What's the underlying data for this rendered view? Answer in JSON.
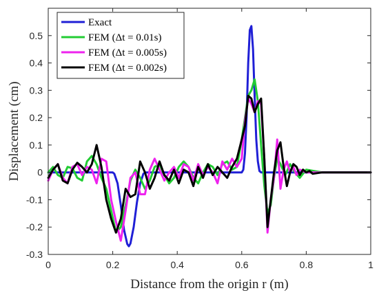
{
  "chart_data": {
    "type": "line",
    "xlabel": "Distance from the origin r (m)",
    "ylabel": "Displacement (cm)",
    "xlim": [
      0,
      1
    ],
    "ylim": [
      -0.3,
      0.6
    ],
    "xticks": [
      0,
      0.2,
      0.4,
      0.6,
      0.8,
      1
    ],
    "yticks": [
      -0.3,
      -0.2,
      -0.1,
      0,
      0.1,
      0.2,
      0.3,
      0.4,
      0.5
    ],
    "xtick_labels": [
      "0",
      "0.2",
      "0.4",
      "0.6",
      "0.8",
      "1"
    ],
    "ytick_labels": [
      "-0.3",
      "-0.2",
      "-0.1",
      "0",
      "0.1",
      "0.2",
      "0.3",
      "0.4",
      "0.5"
    ],
    "grid": false,
    "legend_position": "top-left",
    "series": [
      {
        "name": "Exact",
        "color": "#1f1fd6",
        "x": [
          0,
          0.2,
          0.205,
          0.215,
          0.225,
          0.235,
          0.245,
          0.25,
          0.255,
          0.265,
          0.275,
          0.285,
          0.295,
          0.3,
          0.6,
          0.605,
          0.61,
          0.615,
          0.62,
          0.625,
          0.63,
          0.635,
          0.64,
          0.645,
          0.65,
          0.655,
          0.66,
          1
        ],
        "y": [
          0,
          0,
          -0.005,
          -0.04,
          -0.12,
          -0.21,
          -0.262,
          -0.27,
          -0.26,
          -0.2,
          -0.11,
          -0.04,
          -0.005,
          0,
          0,
          0.01,
          0.07,
          0.2,
          0.4,
          0.52,
          0.535,
          0.45,
          0.28,
          0.12,
          0.04,
          0.005,
          0,
          0
        ]
      },
      {
        "name": "FEM (Δt = 0.01s)",
        "color": "#22cc33",
        "x": [
          0,
          0.015,
          0.03,
          0.045,
          0.06,
          0.075,
          0.09,
          0.105,
          0.12,
          0.135,
          0.15,
          0.165,
          0.18,
          0.195,
          0.21,
          0.225,
          0.24,
          0.255,
          0.27,
          0.285,
          0.3,
          0.315,
          0.33,
          0.345,
          0.36,
          0.375,
          0.39,
          0.405,
          0.42,
          0.435,
          0.45,
          0.465,
          0.48,
          0.495,
          0.51,
          0.525,
          0.54,
          0.555,
          0.57,
          0.585,
          0.6,
          0.61,
          0.62,
          0.63,
          0.64,
          0.65,
          0.66,
          0.67,
          0.68,
          0.69,
          0.7,
          0.71,
          0.72,
          0.735,
          0.75,
          0.765,
          0.78,
          0.8,
          0.85,
          1
        ],
        "y": [
          0,
          0.02,
          -0.01,
          -0.02,
          0.02,
          0.015,
          -0.02,
          -0.03,
          0.04,
          0.06,
          0.03,
          -0.02,
          -0.06,
          -0.14,
          -0.22,
          -0.2,
          -0.12,
          -0.03,
          0.01,
          -0.02,
          -0.06,
          -0.03,
          0.02,
          0.03,
          -0.01,
          -0.04,
          -0.02,
          0.02,
          0.04,
          0.02,
          -0.02,
          -0.04,
          0.0,
          0.03,
          0.02,
          -0.01,
          0.03,
          0.04,
          0.01,
          0.02,
          0.12,
          0.2,
          0.28,
          0.3,
          0.34,
          0.26,
          0.1,
          -0.05,
          -0.15,
          -0.12,
          -0.02,
          0.05,
          0.03,
          -0.01,
          0.03,
          0.0,
          -0.02,
          0.01,
          0,
          0
        ]
      },
      {
        "name": "FEM (Δt = 0.005s)",
        "color": "#ee22ee",
        "x": [
          0,
          0.015,
          0.03,
          0.045,
          0.06,
          0.075,
          0.09,
          0.105,
          0.12,
          0.135,
          0.15,
          0.165,
          0.18,
          0.195,
          0.21,
          0.225,
          0.24,
          0.255,
          0.27,
          0.285,
          0.3,
          0.315,
          0.33,
          0.345,
          0.36,
          0.375,
          0.39,
          0.405,
          0.42,
          0.435,
          0.45,
          0.465,
          0.48,
          0.495,
          0.51,
          0.525,
          0.54,
          0.555,
          0.57,
          0.585,
          0.6,
          0.61,
          0.62,
          0.63,
          0.64,
          0.65,
          0.66,
          0.67,
          0.68,
          0.69,
          0.7,
          0.71,
          0.72,
          0.73,
          0.74,
          0.75,
          0.76,
          0.77,
          0.78,
          0.8,
          0.85,
          1
        ],
        "y": [
          -0.03,
          0.01,
          0.03,
          -0.02,
          -0.04,
          0.02,
          0.03,
          -0.01,
          0.02,
          0.01,
          -0.04,
          0.05,
          0.04,
          -0.1,
          -0.18,
          -0.25,
          -0.14,
          -0.02,
          0.0,
          -0.08,
          -0.08,
          0.01,
          0.05,
          0.01,
          -0.03,
          0.0,
          0.02,
          -0.02,
          0.03,
          0.02,
          -0.03,
          0.03,
          -0.01,
          0.02,
          0.0,
          -0.04,
          0.04,
          0.01,
          0.05,
          0.02,
          0.05,
          0.19,
          0.27,
          0.25,
          0.22,
          0.26,
          0.25,
          0.05,
          -0.22,
          -0.1,
          -0.02,
          0.12,
          -0.06,
          0.01,
          0.04,
          0.0,
          0.02,
          -0.01,
          0.01,
          0.0,
          0,
          0
        ]
      },
      {
        "name": "FEM (Δt = 0.002s)",
        "color": "#000000",
        "x": [
          0,
          0.015,
          0.03,
          0.045,
          0.06,
          0.075,
          0.09,
          0.105,
          0.12,
          0.135,
          0.15,
          0.165,
          0.18,
          0.195,
          0.21,
          0.225,
          0.24,
          0.255,
          0.27,
          0.285,
          0.3,
          0.315,
          0.33,
          0.345,
          0.36,
          0.375,
          0.39,
          0.405,
          0.42,
          0.435,
          0.45,
          0.465,
          0.48,
          0.495,
          0.51,
          0.525,
          0.54,
          0.555,
          0.57,
          0.585,
          0.6,
          0.61,
          0.62,
          0.63,
          0.64,
          0.65,
          0.66,
          0.67,
          0.68,
          0.69,
          0.7,
          0.71,
          0.72,
          0.73,
          0.74,
          0.75,
          0.76,
          0.77,
          0.78,
          0.79,
          0.8,
          0.81,
          0.82,
          0.85,
          1
        ],
        "y": [
          -0.02,
          0.01,
          0.03,
          -0.03,
          -0.04,
          0.01,
          0.035,
          0.02,
          0.0,
          0.03,
          0.1,
          0.02,
          -0.1,
          -0.17,
          -0.22,
          -0.17,
          -0.06,
          -0.09,
          -0.08,
          0.04,
          0.0,
          -0.06,
          -0.02,
          0.04,
          -0.01,
          -0.03,
          0.01,
          -0.04,
          0.01,
          0.0,
          -0.05,
          0.02,
          -0.02,
          0.03,
          -0.01,
          0.02,
          0.0,
          -0.02,
          0.02,
          0.05,
          0.12,
          0.17,
          0.28,
          0.27,
          0.22,
          0.25,
          0.27,
          0.05,
          -0.2,
          -0.1,
          0.0,
          0.08,
          0.11,
          0.02,
          -0.05,
          0.0,
          0.03,
          0.02,
          -0.01,
          0.01,
          0.0,
          0.005,
          -0.005,
          0,
          0
        ]
      }
    ]
  }
}
